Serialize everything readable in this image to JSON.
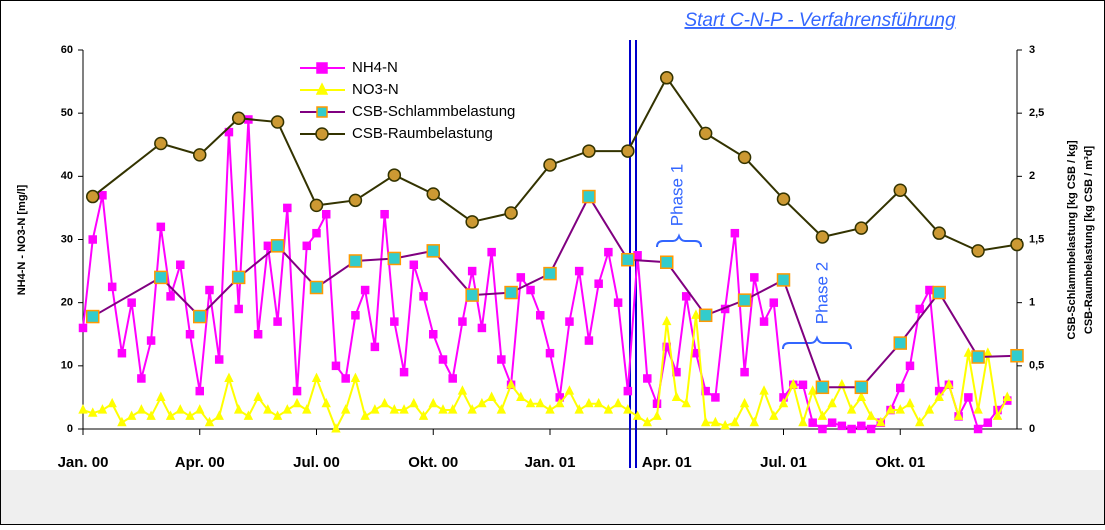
{
  "chart_data": {
    "type": "line",
    "y_label": "NH4-N - NO3-N [mg/l]",
    "y2_labels": [
      "CSB-Schlammbelastung [kg CSB / kg]",
      "CSB-Raumbelastung [kg CSB / m³d]"
    ],
    "annotations": [
      "Start C-N-P - Verfahrensführung",
      "Phase 1",
      "Phase 2"
    ],
    "xlim": [
      0,
      24
    ],
    "xticks": [
      {
        "value": 0,
        "label": "Jan. 00"
      },
      {
        "value": 3,
        "label": "Apr. 00"
      },
      {
        "value": 6,
        "label": "Jul. 00"
      },
      {
        "value": 9,
        "label": "Okt. 00"
      },
      {
        "value": 12,
        "label": "Jan. 01"
      },
      {
        "value": 15,
        "label": "Apr. 01"
      },
      {
        "value": 18,
        "label": "Jul. 01"
      },
      {
        "value": 21,
        "label": "Okt. 01"
      }
    ],
    "ylim": [
      0,
      60
    ],
    "yticks": [
      0,
      10,
      20,
      30,
      40,
      50,
      60
    ],
    "y2lim": [
      0,
      3
    ],
    "y2ticks": [
      0,
      {
        "value": 0.5,
        "label": "0,5"
      },
      1,
      {
        "value": 1.5,
        "label": "1,5"
      },
      2,
      {
        "value": 2.5,
        "label": "2,5"
      },
      3
    ],
    "grid": false,
    "x": [
      0,
      0.25,
      0.5,
      0.75,
      1,
      1.25,
      1.5,
      1.75,
      2,
      2.25,
      2.5,
      2.75,
      3,
      3.25,
      3.5,
      3.75,
      4,
      4.25,
      4.5,
      4.75,
      5,
      5.25,
      5.5,
      5.75,
      6,
      6.25,
      6.5,
      6.75,
      7,
      7.25,
      7.5,
      7.75,
      8,
      8.25,
      8.5,
      8.75,
      9,
      9.25,
      9.5,
      9.75,
      10,
      10.25,
      10.5,
      10.75,
      11,
      11.25,
      11.5,
      11.75,
      12,
      12.25,
      12.5,
      12.75,
      13,
      13.25,
      13.5,
      13.75,
      14,
      14.25,
      14.5,
      14.75,
      15,
      15.25,
      15.5,
      15.75,
      16,
      16.25,
      16.5,
      16.75,
      17,
      17.25,
      17.5,
      17.75,
      18,
      18.25,
      18.5,
      18.75,
      19,
      19.25,
      19.5,
      19.75,
      20,
      20.25,
      20.5,
      20.75,
      21,
      21.25,
      21.5,
      21.75,
      22,
      22.25,
      22.5,
      22.75,
      23,
      23.25,
      23.5,
      23.75
    ],
    "series": [
      {
        "name": "NH4-N",
        "color": "#ff00ff",
        "marker": "square",
        "marker_fill": "#ff00ff",
        "values": [
          16,
          30,
          37,
          22.5,
          12,
          20,
          8,
          14,
          32,
          21,
          26,
          15,
          6,
          22,
          11,
          47,
          19,
          49,
          15,
          29,
          17,
          35,
          6,
          29,
          31,
          34,
          10,
          8,
          18,
          22,
          13,
          34,
          17,
          9,
          26,
          21,
          15,
          11,
          8,
          17,
          25,
          16,
          28,
          11,
          7,
          24,
          22,
          18,
          12,
          5,
          17,
          25,
          14,
          23,
          28,
          20,
          6,
          27.5,
          8,
          4,
          13,
          9,
          21,
          12,
          6,
          5,
          19,
          31,
          9,
          24,
          17,
          20,
          5,
          7,
          7,
          1,
          0,
          1,
          0.5,
          0,
          0.5,
          0,
          1,
          3,
          6.5,
          10,
          19,
          22,
          6,
          7,
          2,
          5,
          0,
          1,
          3,
          4.5
        ]
      },
      {
        "name": "NO3-N",
        "color": "#ffff00",
        "marker": "triangle",
        "marker_fill": "#ffff00",
        "values": [
          3,
          2.5,
          3,
          4,
          1,
          2,
          3,
          2,
          5,
          2,
          3,
          2,
          3,
          1,
          2,
          8,
          3,
          2,
          5,
          3,
          2,
          3,
          4,
          3,
          8,
          4,
          0,
          3,
          8,
          2,
          3,
          4,
          3,
          3,
          4,
          2,
          4,
          3,
          3,
          6,
          3,
          4,
          5,
          3,
          7,
          5,
          4,
          4,
          3,
          4,
          6,
          3,
          4,
          4,
          3,
          4,
          3,
          2,
          1,
          2,
          17,
          5,
          4,
          18,
          1,
          1,
          0.5,
          1,
          4,
          1,
          6,
          2,
          4,
          7,
          1,
          6,
          2,
          4,
          7,
          3,
          5,
          2,
          1,
          3,
          3,
          4,
          1,
          3,
          5,
          7,
          2,
          12,
          3,
          12,
          2,
          5
        ]
      },
      {
        "name": "CSB-Schlammbelastung",
        "color": "#800080",
        "marker": "square",
        "marker_fill": "#33cccc",
        "marker_stroke": "#ff9900",
        "axis": "y2",
        "x": [
          0.25,
          2,
          3,
          4,
          5,
          6,
          7,
          8,
          9,
          10,
          11,
          12,
          13,
          14,
          15,
          16,
          17,
          18,
          19,
          20,
          21,
          22,
          23,
          24
        ],
        "values": [
          0.89,
          1.2,
          0.89,
          1.2,
          1.45,
          1.12,
          1.33,
          1.35,
          1.41,
          1.06,
          1.08,
          1.23,
          1.84,
          1.34,
          1.32,
          0.9,
          1.02,
          1.18,
          0.33,
          0.33,
          0.68,
          1.08,
          0.57,
          0.58
        ]
      },
      {
        "name": "CSB-Raumbelastung",
        "color": "#333300",
        "marker": "circle",
        "marker_fill": "#cc9933",
        "marker_stroke": "#333300",
        "axis": "y2",
        "x": [
          0.25,
          2,
          3,
          4,
          5,
          6,
          7,
          8,
          9,
          10,
          11,
          12,
          13,
          14,
          15,
          16,
          17,
          18,
          19,
          20,
          21,
          22,
          23,
          24
        ],
        "values": [
          1.84,
          2.26,
          2.17,
          2.46,
          2.43,
          1.77,
          1.81,
          2.01,
          1.86,
          1.64,
          1.71,
          2.09,
          2.2,
          2.2,
          2.78,
          2.34,
          2.15,
          1.82,
          1.52,
          1.59,
          1.89,
          1.55,
          1.41,
          1.46
        ]
      }
    ]
  }
}
